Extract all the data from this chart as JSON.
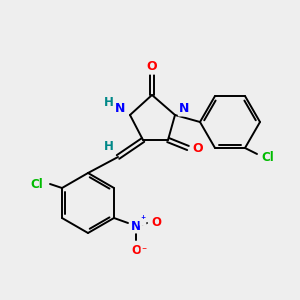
{
  "background_color": "#eeeeee",
  "bond_color": "#000000",
  "atom_colors": {
    "O": "#ff0000",
    "N": "#0000ff",
    "Cl": "#00bb00",
    "H": "#008888",
    "C": "#000000"
  },
  "figsize": [
    3.0,
    3.0
  ],
  "dpi": 100
}
